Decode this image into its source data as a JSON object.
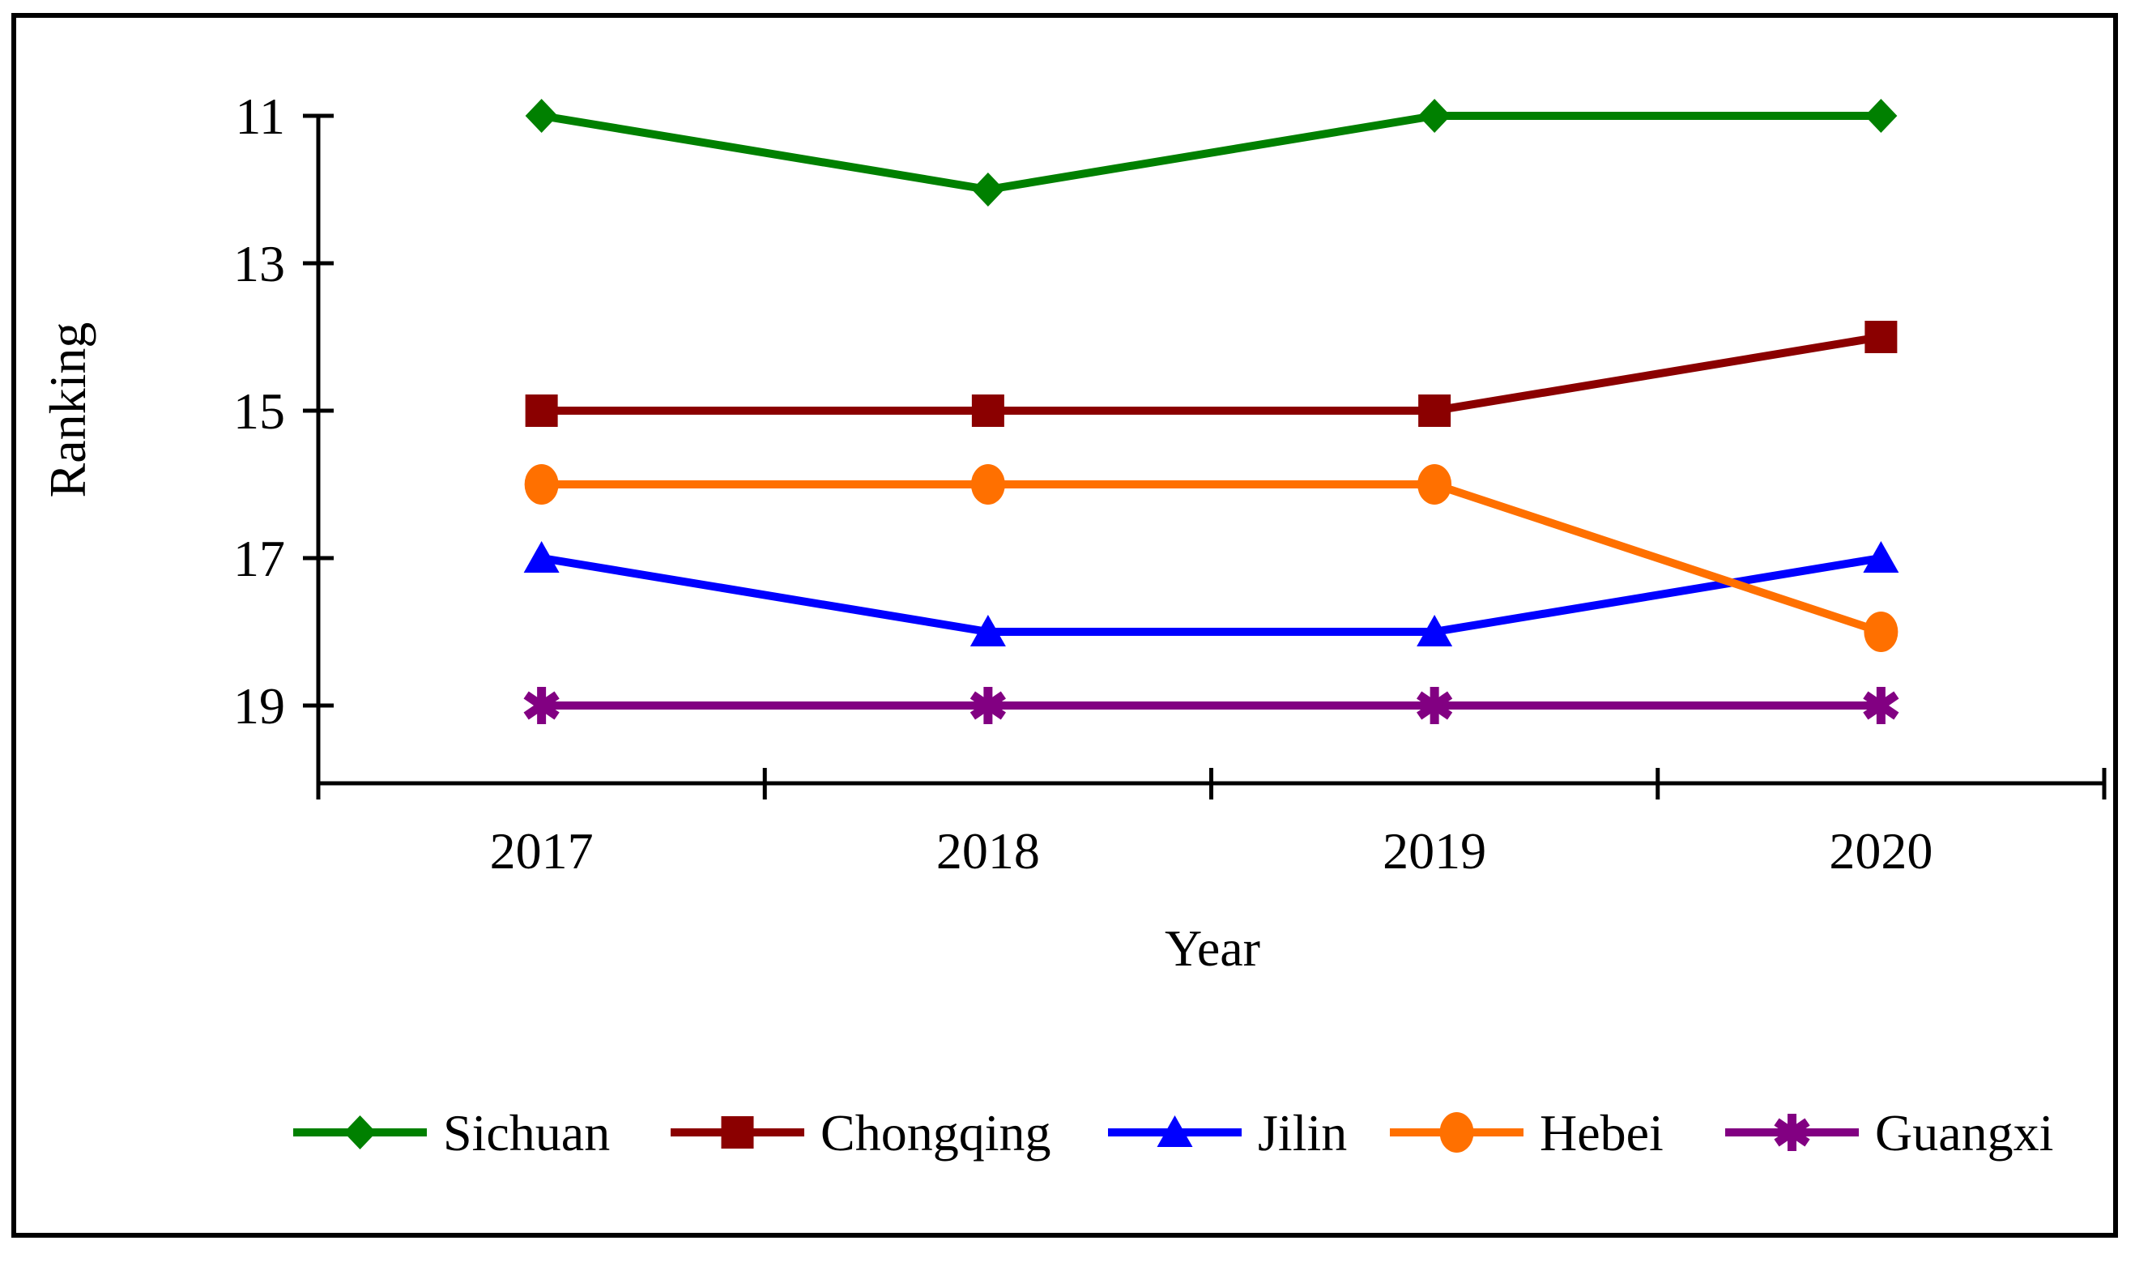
{
  "chart_data": {
    "type": "line",
    "title": "",
    "xlabel": "Year",
    "ylabel": "Ranking",
    "categories": [
      "2017",
      "2018",
      "2019",
      "2020"
    ],
    "y_axis": {
      "ticks": [
        11,
        13,
        15,
        17,
        19
      ],
      "inverted": true,
      "min": 11,
      "max": 20
    },
    "series": [
      {
        "name": "Sichuan",
        "color": "#008000",
        "marker": "diamond",
        "values": [
          11,
          12,
          11,
          11
        ]
      },
      {
        "name": "Chongqing",
        "color": "#8B0000",
        "marker": "square",
        "values": [
          15,
          15,
          15,
          14
        ]
      },
      {
        "name": "Jilin",
        "color": "#0000FF",
        "marker": "triangle",
        "values": [
          17,
          18,
          18,
          17
        ]
      },
      {
        "name": "Hebei",
        "color": "#FF7000",
        "marker": "circle",
        "values": [
          16,
          16,
          16,
          18
        ]
      },
      {
        "name": "Guangxi",
        "color": "#820082",
        "marker": "asterisk",
        "values": [
          19,
          19,
          19,
          19
        ]
      }
    ],
    "legend_position": "bottom",
    "grid": false,
    "frame_color": "#000000"
  }
}
